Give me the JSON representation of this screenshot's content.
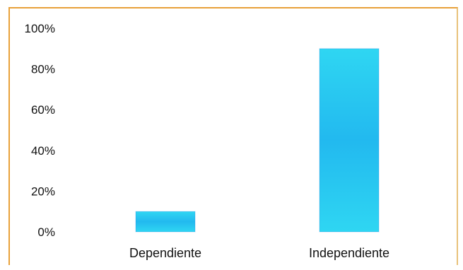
{
  "chart_data": {
    "type": "bar",
    "categories": [
      "Dependiente",
      "Independiente"
    ],
    "values": [
      10,
      90
    ],
    "ylim": [
      0,
      100
    ],
    "yticks": [
      0,
      20,
      40,
      60,
      80,
      100
    ],
    "ytick_labels": [
      "0%",
      "20%",
      "40%",
      "60%",
      "80%",
      "100%"
    ],
    "title": "",
    "xlabel": "",
    "ylabel": "",
    "grid": false,
    "legend": "none",
    "colors": {
      "bar": "#2fd6f2",
      "bar_dark": "#1d6fd6",
      "frame": "#e8a13a",
      "text": "#111111"
    }
  }
}
